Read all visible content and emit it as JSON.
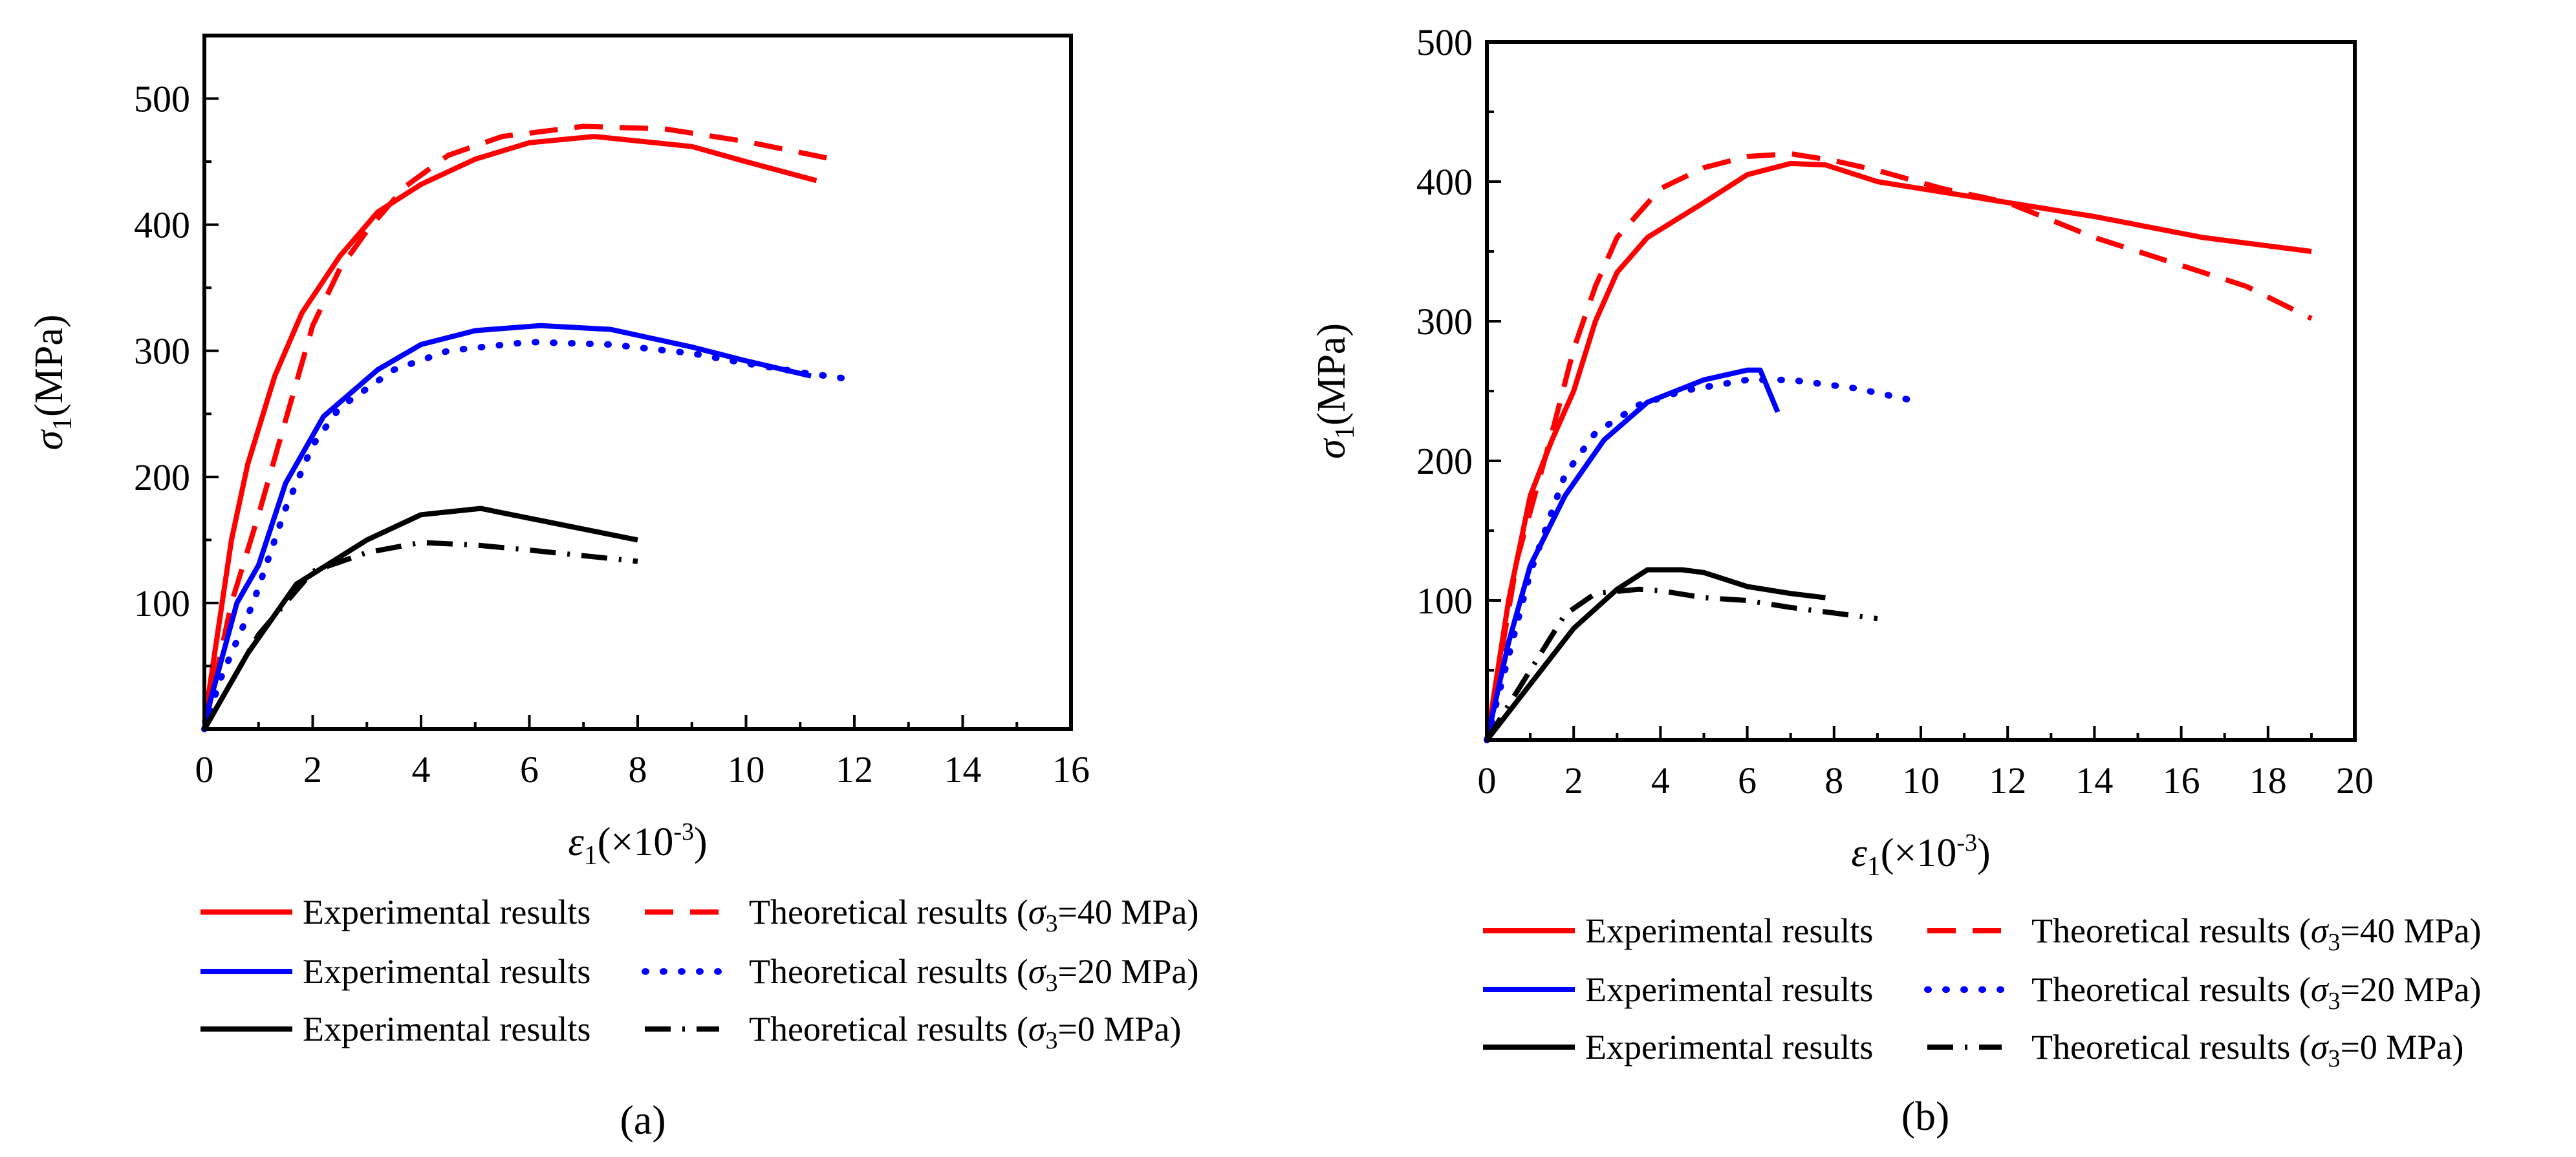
{
  "chart_data": [
    {
      "type": "line",
      "panel_label": "(a)",
      "panel_letter": "a",
      "xlabel": {
        "symbol": "ε",
        "sub": "1",
        "unit": "(×10",
        "exp": "-3",
        "close": ")"
      },
      "ylabel": {
        "symbol": "σ",
        "sub": "1",
        "unit": "(MPa)"
      },
      "xlim": [
        0,
        16
      ],
      "ylim": [
        0,
        550
      ],
      "xticks": [
        0,
        2,
        4,
        6,
        8,
        10,
        12,
        14,
        16
      ],
      "yticks": [
        100,
        200,
        300,
        400,
        500
      ],
      "grid": false,
      "legend_position": "bottom",
      "series": [
        {
          "name": "Experimental results",
          "group": "σ3=40 MPa",
          "color": "#ff0000",
          "style": "solid",
          "x": [
            0,
            0.5,
            0.8,
            1.3,
            1.8,
            2.5,
            3.2,
            4,
            5,
            6,
            7.2,
            9,
            10,
            11.3
          ],
          "y": [
            5,
            150,
            210,
            280,
            330,
            375,
            410,
            432,
            452,
            465,
            470,
            462,
            450,
            435
          ]
        },
        {
          "name": "Theoretical results (σ3=40 MPa)",
          "group": "σ3=40 MPa",
          "color": "#ff0000",
          "style": "dash",
          "x": [
            0,
            0.5,
            1,
            1.5,
            2,
            2.5,
            3,
            3.7,
            4.5,
            5.5,
            7,
            8.5,
            10,
            11.6
          ],
          "y": [
            0,
            100,
            170,
            245,
            320,
            365,
            395,
            430,
            455,
            470,
            478,
            476,
            466,
            452
          ]
        },
        {
          "name": "Experimental results",
          "group": "σ3=20 MPa",
          "color": "#0000ff",
          "style": "solid",
          "x": [
            0,
            0.6,
            1,
            1.5,
            2.2,
            3.2,
            4,
            5,
            6.2,
            7.5,
            9,
            10,
            11.2
          ],
          "y": [
            5,
            100,
            130,
            195,
            248,
            285,
            305,
            316,
            320,
            317,
            303,
            292,
            280
          ]
        },
        {
          "name": "Theoretical results (σ3=20 MPa)",
          "group": "σ3=20 MPa",
          "color": "#0000ff",
          "style": "dot",
          "x": [
            0,
            0.3,
            0.9,
            1.5,
            2,
            2.5,
            3.5,
            4.5,
            6,
            7.5,
            9,
            10,
            11,
            12
          ],
          "y": [
            0,
            40,
            100,
            175,
            225,
            255,
            285,
            300,
            307,
            305,
            298,
            290,
            283,
            277
          ]
        },
        {
          "name": "Experimental results",
          "group": "σ3=0 MPa",
          "color": "#000000",
          "style": "solid",
          "x": [
            0,
            0.8,
            1.7,
            3,
            4,
            5.1,
            8
          ],
          "y": [
            0,
            60,
            115,
            150,
            170,
            175,
            150
          ]
        },
        {
          "name": "Theoretical results (σ3=0 MPa)",
          "group": "σ3=0 MPa",
          "color": "#000000",
          "style": "dashdot",
          "x": [
            0,
            1,
            2,
            3,
            4,
            5,
            6,
            8
          ],
          "y": [
            0,
            75,
            125,
            140,
            148,
            146,
            142,
            133
          ]
        }
      ],
      "legend": [
        {
          "exp": "Experimental results",
          "theo_prefix": "Theoretical results (",
          "sym": "σ",
          "sub": "3",
          "theo_suffix": "=40 MPa)",
          "color": "#ff0000",
          "style": "dash"
        },
        {
          "exp": "Experimental results",
          "theo_prefix": "Theoretical results (",
          "sym": "σ",
          "sub": "3",
          "theo_suffix": "=20 MPa)",
          "color": "#0000ff",
          "style": "dot"
        },
        {
          "exp": "Experimental results",
          "theo_prefix": "Theoretical results (",
          "sym": "σ",
          "sub": "3",
          "theo_suffix": "=0 MPa)",
          "color": "#000000",
          "style": "dashdot"
        }
      ]
    },
    {
      "type": "line",
      "panel_label": "(b)",
      "panel_letter": "b",
      "xlabel": {
        "symbol": "ε",
        "sub": "1",
        "unit": "(×10",
        "exp": "-3",
        "close": ")"
      },
      "ylabel": {
        "symbol": "σ",
        "sub": "1",
        "unit": "(MPa)"
      },
      "xlim": [
        0,
        20
      ],
      "ylim": [
        0,
        500
      ],
      "xticks": [
        0,
        2,
        4,
        6,
        8,
        10,
        12,
        14,
        16,
        18,
        20
      ],
      "yticks": [
        100,
        200,
        300,
        400,
        500
      ],
      "grid": false,
      "legend_position": "bottom",
      "series": [
        {
          "name": "Experimental results",
          "group": "σ3=40 MPa",
          "color": "#ff0000",
          "style": "solid",
          "x": [
            0,
            0.5,
            1,
            1.5,
            2,
            2.5,
            3,
            3.7,
            5,
            6,
            7,
            7.8,
            9,
            11,
            14,
            16.5,
            19
          ],
          "y": [
            0,
            100,
            175,
            215,
            250,
            300,
            335,
            360,
            385,
            405,
            413,
            412,
            400,
            390,
            375,
            360,
            350
          ]
        },
        {
          "name": "Theoretical results (σ3=40 MPa)",
          "group": "σ3=40 MPa",
          "color": "#ff0000",
          "style": "dash",
          "x": [
            0,
            0.7,
            1.5,
            2,
            2.5,
            3,
            4,
            5,
            6,
            7,
            8,
            9,
            10.5,
            12,
            14,
            16,
            17.5,
            19
          ],
          "y": [
            0,
            130,
            220,
            280,
            325,
            360,
            395,
            410,
            418,
            420,
            415,
            408,
            395,
            385,
            360,
            340,
            325,
            302
          ]
        },
        {
          "name": "Experimental results",
          "group": "σ3=20 MPa",
          "color": "#0000ff",
          "style": "solid",
          "x": [
            0,
            0.5,
            1,
            1.8,
            2.7,
            3.7,
            5,
            6,
            6.3,
            6.7
          ],
          "y": [
            0,
            70,
            125,
            175,
            215,
            242,
            258,
            265,
            265,
            235
          ]
        },
        {
          "name": "Theoretical results (σ3=20 MPa)",
          "group": "σ3=20 MPa",
          "color": "#0000ff",
          "style": "dot",
          "x": [
            0,
            1,
            1.8,
            2.5,
            3.5,
            4.5,
            6,
            7,
            8.5,
            10
          ],
          "y": [
            0,
            120,
            190,
            220,
            240,
            250,
            258,
            258,
            252,
            242
          ]
        },
        {
          "name": "Experimental results",
          "group": "σ3=0 MPa",
          "color": "#000000",
          "style": "solid",
          "x": [
            0,
            1,
            2,
            3,
            3.7,
            4.5,
            5,
            6,
            7,
            7.8
          ],
          "y": [
            0,
            40,
            80,
            108,
            122,
            122,
            120,
            110,
            105,
            102
          ]
        },
        {
          "name": "Theoretical results (σ3=0 MPa)",
          "group": "σ3=0 MPa",
          "color": "#000000",
          "style": "dashdot",
          "x": [
            0,
            1,
            1.8,
            2.5,
            3.5,
            4,
            5,
            6,
            7,
            8,
            9
          ],
          "y": [
            0,
            50,
            90,
            105,
            108,
            107,
            102,
            100,
            95,
            91,
            87
          ]
        }
      ],
      "legend": [
        {
          "exp": "Experimental results",
          "theo_prefix": "Theoretical results (",
          "sym": "σ",
          "sub": "3",
          "theo_suffix": "=40 MPa)",
          "color": "#ff0000",
          "style": "dash"
        },
        {
          "exp": "Experimental results",
          "theo_prefix": "Theoretical results (",
          "sym": "σ",
          "sub": "3",
          "theo_suffix": "=20 MPa)",
          "color": "#0000ff",
          "style": "dot"
        },
        {
          "exp": "Experimental results",
          "theo_prefix": "Theoretical results (",
          "sym": "σ",
          "sub": "3",
          "theo_suffix": "=0 MPa)",
          "color": "#000000",
          "style": "dashdot"
        }
      ]
    }
  ]
}
